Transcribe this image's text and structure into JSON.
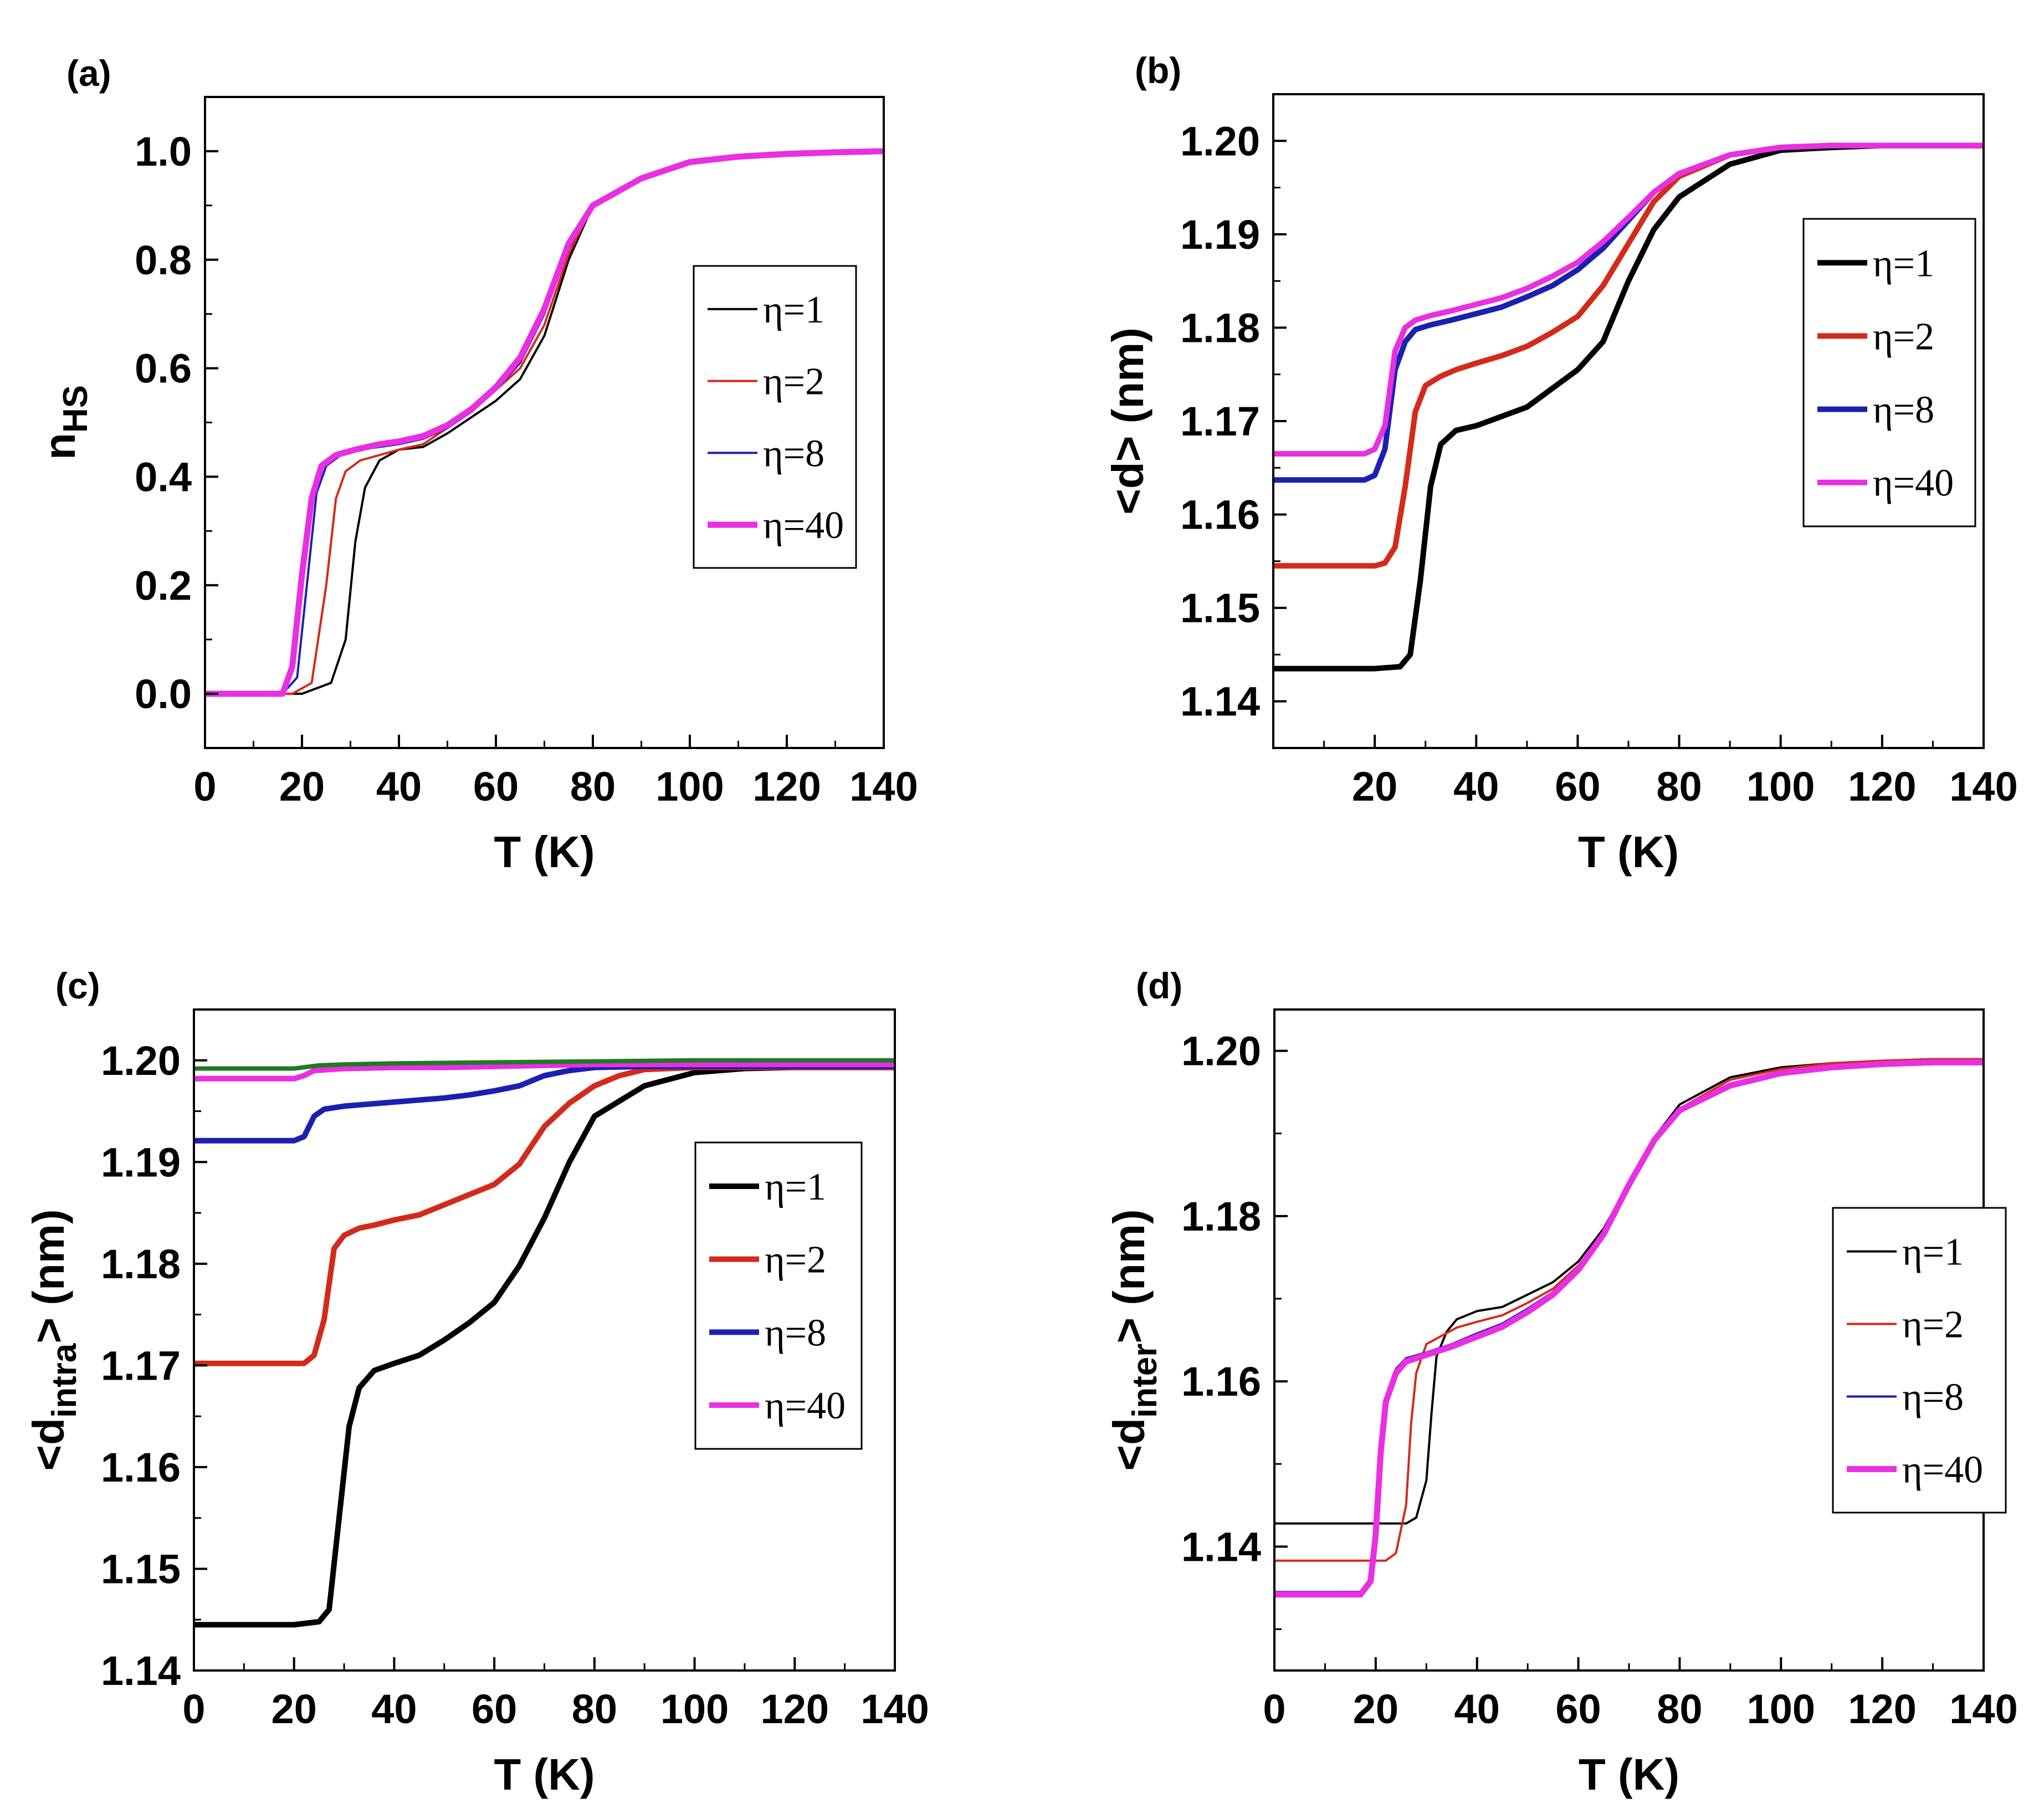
{
  "figure": {
    "panels_count": 4
  },
  "chart_data": [
    {
      "panel_label": "(a)",
      "type": "line",
      "xlabel": "T (K)",
      "ylabel": {
        "main": "n",
        "sub": "HS"
      },
      "xlim": [
        0,
        140
      ],
      "ylim": [
        -0.1,
        1.1
      ],
      "xticks": [
        0,
        20,
        40,
        60,
        80,
        100,
        120,
        140
      ],
      "xtick_labels": [
        "0",
        "20",
        "40",
        "60",
        "80",
        "100",
        "120",
        "140"
      ],
      "yticks": [
        0.0,
        0.2,
        0.4,
        0.6,
        0.8,
        1.0
      ],
      "ytick_labels": [
        "0.0",
        "0.2",
        "0.4",
        "0.6",
        "0.8",
        "1.0"
      ],
      "legend": {
        "position": "center-right"
      },
      "series": [
        {
          "name": "η=1",
          "color": "#000000",
          "width": 4,
          "x": [
            0,
            20,
            26,
            29,
            31,
            33,
            36,
            40,
            45,
            50,
            55,
            60,
            65,
            70,
            75,
            80,
            90,
            100,
            110,
            120,
            130,
            140
          ],
          "y": [
            0,
            0,
            0.02,
            0.1,
            0.28,
            0.38,
            0.43,
            0.45,
            0.455,
            0.48,
            0.51,
            0.54,
            0.58,
            0.66,
            0.8,
            0.9,
            0.95,
            0.98,
            0.99,
            0.995,
            0.998,
            1.0
          ]
        },
        {
          "name": "η=2",
          "color": "#d42a1a",
          "width": 4,
          "x": [
            0,
            18,
            22,
            25,
            27,
            29,
            32,
            36,
            40,
            45,
            50,
            55,
            60,
            65,
            70,
            75,
            80,
            90,
            100,
            110,
            120,
            130,
            140
          ],
          "y": [
            0,
            0,
            0.02,
            0.2,
            0.36,
            0.41,
            0.43,
            0.44,
            0.45,
            0.46,
            0.49,
            0.52,
            0.56,
            0.6,
            0.68,
            0.81,
            0.9,
            0.95,
            0.98,
            0.99,
            0.995,
            0.998,
            1.0
          ]
        },
        {
          "name": "η=8",
          "color": "#1c20b0",
          "width": 4,
          "x": [
            0,
            16,
            19,
            21,
            23,
            25,
            28,
            32,
            36,
            40,
            45,
            50,
            55,
            60,
            65,
            70,
            75,
            80,
            90,
            100,
            110,
            120,
            130,
            140
          ],
          "y": [
            0,
            0,
            0.03,
            0.2,
            0.37,
            0.42,
            0.44,
            0.45,
            0.455,
            0.46,
            0.47,
            0.49,
            0.52,
            0.56,
            0.61,
            0.7,
            0.82,
            0.9,
            0.95,
            0.98,
            0.99,
            0.995,
            0.998,
            1.0
          ]
        },
        {
          "name": "η=40",
          "color": "#e830e0",
          "width": 11,
          "x": [
            0,
            16,
            18,
            20,
            22,
            24,
            27,
            31,
            36,
            40,
            45,
            50,
            55,
            60,
            65,
            70,
            75,
            80,
            90,
            100,
            110,
            120,
            130,
            140
          ],
          "y": [
            0,
            0,
            0.05,
            0.22,
            0.36,
            0.42,
            0.44,
            0.45,
            0.46,
            0.465,
            0.475,
            0.495,
            0.525,
            0.565,
            0.62,
            0.71,
            0.83,
            0.9,
            0.95,
            0.98,
            0.99,
            0.995,
            0.998,
            1.0
          ]
        }
      ]
    },
    {
      "panel_label": "(b)",
      "type": "line",
      "xlabel": "T (K)",
      "ylabel": {
        "main": "<d> (nm)",
        "sub": ""
      },
      "xlim": [
        0,
        140
      ],
      "ylim": [
        1.135,
        1.205
      ],
      "xticks": [
        20,
        40,
        60,
        80,
        100,
        120,
        140
      ],
      "xtick_labels": [
        "20",
        "40",
        "60",
        "80",
        "100",
        "120",
        "140"
      ],
      "yticks": [
        1.14,
        1.15,
        1.16,
        1.17,
        1.18,
        1.19,
        1.2
      ],
      "ytick_labels": [
        "1.14",
        "1.15",
        "1.16",
        "1.17",
        "1.18",
        "1.19",
        "1.20"
      ],
      "legend": {
        "position": "top-right"
      },
      "series": [
        {
          "name": "η=1",
          "color": "#000000",
          "width": 10,
          "x": [
            0,
            20,
            25,
            27,
            29,
            31,
            33,
            36,
            40,
            45,
            50,
            55,
            60,
            65,
            70,
            75,
            80,
            90,
            100,
            110,
            120,
            130,
            140
          ],
          "y": [
            1.1435,
            1.1435,
            1.1437,
            1.145,
            1.153,
            1.163,
            1.1675,
            1.169,
            1.1695,
            1.1705,
            1.1715,
            1.1735,
            1.1755,
            1.1785,
            1.185,
            1.1905,
            1.194,
            1.1975,
            1.199,
            1.1993,
            1.1995,
            1.1995,
            1.1995
          ]
        },
        {
          "name": "η=2",
          "color": "#d42a1a",
          "width": 10,
          "x": [
            0,
            20,
            22,
            24,
            26,
            28,
            30,
            33,
            36,
            40,
            45,
            50,
            55,
            60,
            65,
            70,
            75,
            80,
            90,
            100,
            110,
            120,
            130,
            140
          ],
          "y": [
            1.1545,
            1.1545,
            1.1548,
            1.1565,
            1.163,
            1.171,
            1.1738,
            1.1748,
            1.1755,
            1.1762,
            1.177,
            1.178,
            1.1795,
            1.1812,
            1.1845,
            1.189,
            1.1935,
            1.1962,
            1.1985,
            1.1993,
            1.1995,
            1.1995,
            1.1995,
            1.1995
          ]
        },
        {
          "name": "η=8",
          "color": "#1c20b0",
          "width": 10,
          "x": [
            0,
            18,
            20,
            22,
            24,
            26,
            28,
            31,
            35,
            40,
            45,
            50,
            55,
            60,
            65,
            70,
            75,
            80,
            90,
            100,
            110,
            120,
            130,
            140
          ],
          "y": [
            1.1637,
            1.1637,
            1.1642,
            1.167,
            1.1755,
            1.1785,
            1.1798,
            1.1803,
            1.1808,
            1.1815,
            1.1822,
            1.1833,
            1.1845,
            1.1862,
            1.1885,
            1.1915,
            1.1945,
            1.1965,
            1.1985,
            1.1993,
            1.1995,
            1.1995,
            1.1995,
            1.1995
          ]
        },
        {
          "name": "η=40",
          "color": "#e830e0",
          "width": 10,
          "x": [
            0,
            18,
            20,
            22,
            24,
            26,
            28,
            31,
            35,
            40,
            45,
            50,
            55,
            60,
            65,
            70,
            75,
            80,
            90,
            100,
            110,
            120,
            130,
            140
          ],
          "y": [
            1.1665,
            1.1665,
            1.167,
            1.1695,
            1.1775,
            1.18,
            1.1808,
            1.1813,
            1.1818,
            1.1825,
            1.1832,
            1.1842,
            1.1855,
            1.187,
            1.1892,
            1.1918,
            1.1945,
            1.1965,
            1.1985,
            1.1993,
            1.1995,
            1.1995,
            1.1995,
            1.1995
          ]
        }
      ]
    },
    {
      "panel_label": "(c)",
      "type": "line",
      "xlabel": "T (K)",
      "ylabel": {
        "main": "<d",
        "sub": "intra",
        "suffix": "> (nm)"
      },
      "xlim": [
        0,
        140
      ],
      "ylim": [
        1.14,
        1.205
      ],
      "xticks": [
        0,
        20,
        40,
        60,
        80,
        100,
        120,
        140
      ],
      "xtick_labels": [
        "0",
        "20",
        "40",
        "60",
        "80",
        "100",
        "120",
        "140"
      ],
      "yticks": [
        1.14,
        1.15,
        1.16,
        1.17,
        1.18,
        1.19,
        1.2
      ],
      "ytick_labels": [
        "1.14",
        "1.15",
        "1.16",
        "1.17",
        "1.18",
        "1.19",
        "1.20"
      ],
      "legend": {
        "position": "center-right"
      },
      "series": [
        {
          "name": "η=1",
          "color": "#000000",
          "width": 10,
          "x": [
            0,
            20,
            25,
            27,
            29,
            31,
            33,
            36,
            40,
            45,
            50,
            55,
            60,
            65,
            70,
            75,
            80,
            90,
            100,
            110,
            120,
            130,
            140
          ],
          "y": [
            1.1445,
            1.1445,
            1.1448,
            1.146,
            1.155,
            1.164,
            1.1678,
            1.1695,
            1.1702,
            1.171,
            1.1725,
            1.1742,
            1.1762,
            1.1798,
            1.1845,
            1.19,
            1.1945,
            1.1975,
            1.1988,
            1.1992,
            1.1993,
            1.1993,
            1.1993
          ]
        },
        {
          "name": "η=2",
          "color": "#d42a1a",
          "width": 10,
          "x": [
            0,
            22,
            24,
            26,
            28,
            30,
            33,
            36,
            40,
            45,
            50,
            55,
            60,
            65,
            70,
            75,
            80,
            85,
            90,
            100,
            110,
            120,
            130,
            140
          ],
          "y": [
            1.1702,
            1.1702,
            1.171,
            1.1745,
            1.1815,
            1.1828,
            1.1835,
            1.1838,
            1.1843,
            1.1848,
            1.1858,
            1.1868,
            1.1878,
            1.1898,
            1.1935,
            1.1958,
            1.1975,
            1.1985,
            1.1991,
            1.1993,
            1.1993,
            1.1993,
            1.1993,
            1.1993
          ]
        },
        {
          "name": "η=8",
          "color": "#1c20b0",
          "width": 10,
          "x": [
            0,
            20,
            22,
            24,
            26,
            30,
            35,
            40,
            45,
            50,
            55,
            60,
            65,
            70,
            75,
            80,
            90,
            100,
            110,
            120,
            130,
            140
          ],
          "y": [
            1.1921,
            1.1921,
            1.1925,
            1.1945,
            1.1952,
            1.1955,
            1.1957,
            1.1959,
            1.1961,
            1.1963,
            1.1966,
            1.197,
            1.1975,
            1.1985,
            1.199,
            1.1993,
            1.1994,
            1.1994,
            1.1994,
            1.1994,
            1.1994,
            1.1994
          ]
        },
        {
          "name": "η=40",
          "color": "#e830e0",
          "width": 10,
          "x": [
            0,
            20,
            22,
            24,
            30,
            40,
            50,
            60,
            70,
            80,
            90,
            100,
            110,
            120,
            130,
            140
          ],
          "y": [
            1.1982,
            1.1982,
            1.1985,
            1.199,
            1.1992,
            1.1993,
            1.1993,
            1.1994,
            1.1995,
            1.1996,
            1.1996,
            1.1996,
            1.1996,
            1.1996,
            1.1996,
            1.1996
          ]
        },
        {
          "name": "",
          "color": "#1e7a24",
          "width": 8,
          "legend": false,
          "x": [
            0,
            20,
            25,
            30,
            40,
            60,
            80,
            100,
            120,
            140
          ],
          "y": [
            1.1992,
            1.1992,
            1.1995,
            1.1996,
            1.1997,
            1.1998,
            1.1999,
            1.2,
            1.2,
            1.2
          ]
        }
      ]
    },
    {
      "panel_label": "(d)",
      "type": "line",
      "xlabel": "T (K)",
      "ylabel": {
        "main": "<d",
        "sub": "inter",
        "suffix": "> (nm)"
      },
      "xlim": [
        0,
        140
      ],
      "ylim": [
        1.125,
        1.205
      ],
      "xticks": [
        0,
        20,
        40,
        60,
        80,
        100,
        120,
        140
      ],
      "xtick_labels": [
        "0",
        "20",
        "40",
        "60",
        "80",
        "100",
        "120",
        "140"
      ],
      "yticks": [
        1.14,
        1.16,
        1.18,
        1.2
      ],
      "ytick_labels": [
        "1.14",
        "1.16",
        "1.18",
        "1.20"
      ],
      "legend": {
        "position": "center-right"
      },
      "series": [
        {
          "name": "η=1",
          "color": "#000000",
          "width": 4,
          "x": [
            0,
            26,
            28,
            30,
            31,
            32,
            34,
            36,
            40,
            45,
            50,
            55,
            60,
            65,
            70,
            75,
            80,
            90,
            100,
            110,
            120,
            130,
            140
          ],
          "y": [
            1.1428,
            1.1428,
            1.1435,
            1.148,
            1.156,
            1.163,
            1.166,
            1.1675,
            1.1685,
            1.169,
            1.1705,
            1.172,
            1.1745,
            1.1785,
            1.184,
            1.1895,
            1.1935,
            1.1968,
            1.198,
            1.1985,
            1.1988,
            1.199,
            1.199
          ]
        },
        {
          "name": "η=2",
          "color": "#d42a1a",
          "width": 4,
          "x": [
            0,
            22,
            24,
            26,
            27,
            28,
            30,
            33,
            36,
            40,
            45,
            50,
            55,
            60,
            65,
            70,
            75,
            80,
            90,
            100,
            110,
            120,
            130,
            140
          ],
          "y": [
            1.1383,
            1.1383,
            1.1392,
            1.145,
            1.155,
            1.161,
            1.1645,
            1.1655,
            1.1665,
            1.1672,
            1.168,
            1.1695,
            1.1712,
            1.174,
            1.178,
            1.184,
            1.1895,
            1.193,
            1.1965,
            1.1978,
            1.1985,
            1.1988,
            1.199,
            1.199
          ]
        },
        {
          "name": "η=8",
          "color": "#1c20b0",
          "width": 4,
          "x": [
            0,
            17,
            19,
            20,
            21,
            22,
            24,
            26,
            30,
            35,
            40,
            45,
            50,
            55,
            60,
            65,
            70,
            75,
            80,
            90,
            100,
            110,
            120,
            130,
            140
          ],
          "y": [
            1.1345,
            1.1345,
            1.136,
            1.142,
            1.152,
            1.158,
            1.1615,
            1.1628,
            1.1635,
            1.1645,
            1.1658,
            1.167,
            1.1688,
            1.1708,
            1.1738,
            1.178,
            1.184,
            1.1895,
            1.193,
            1.196,
            1.1975,
            1.1982,
            1.1986,
            1.1988,
            1.1988
          ]
        },
        {
          "name": "η=40",
          "color": "#e830e0",
          "width": 11,
          "x": [
            0,
            17,
            19,
            20,
            21,
            22,
            24,
            26,
            30,
            35,
            40,
            45,
            50,
            55,
            60,
            65,
            70,
            75,
            80,
            90,
            100,
            110,
            120,
            130,
            140
          ],
          "y": [
            1.1342,
            1.1342,
            1.1358,
            1.1415,
            1.1515,
            1.1575,
            1.161,
            1.1624,
            1.1632,
            1.1642,
            1.1654,
            1.1666,
            1.1684,
            1.1705,
            1.1735,
            1.1778,
            1.1838,
            1.1892,
            1.1928,
            1.1958,
            1.1973,
            1.198,
            1.1984,
            1.1986,
            1.1986
          ]
        }
      ]
    }
  ]
}
